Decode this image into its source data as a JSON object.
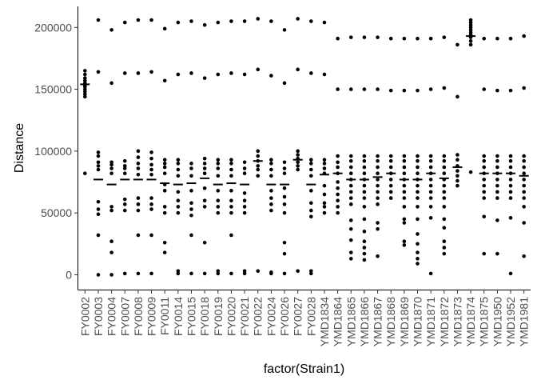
{
  "chart_data": {
    "type": "scatter",
    "xlabel": "factor(Strain1)",
    "ylabel": "Distance",
    "categories": [
      "FY0002",
      "FY0003",
      "FY0004",
      "FY0007",
      "FY0008",
      "FY0009",
      "FY0011",
      "FY0014",
      "FY0015",
      "FY0018",
      "FY0019",
      "FY0020",
      "FY0021",
      "FY0022",
      "FY0024",
      "FY0026",
      "FY0027",
      "FY0028",
      "YMD1834",
      "YMD1864",
      "YMD1865",
      "YMD1866",
      "YMD1867",
      "YMD1868",
      "YMD1869",
      "YMD1870",
      "YMD1871",
      "YMD1872",
      "YMD1873",
      "YMD1874",
      "YMD1875",
      "YMD1950",
      "YMD1952",
      "YMD1981"
    ],
    "ylim": [
      -12000,
      217000
    ],
    "yticks": [
      0,
      50000,
      100000,
      150000,
      200000
    ],
    "ytick_labels": [
      "0",
      "50000",
      "100000",
      "150000",
      "200000"
    ],
    "grid": false,
    "legend": "none",
    "point_color": "#000000",
    "points": [
      [
        82000,
        146000,
        148000,
        150000,
        152000,
        155000,
        157000,
        159000,
        162000,
        165000,
        144000,
        153000
      ],
      [
        0,
        32000,
        49000,
        53000,
        59000,
        85000,
        88000,
        91000,
        96000,
        99000,
        164000,
        206000
      ],
      [
        0,
        18000,
        27000,
        52000,
        55000,
        82000,
        86000,
        89000,
        91000,
        155000,
        198000
      ],
      [
        1000,
        52000,
        57000,
        61000,
        82000,
        86000,
        88000,
        92000,
        163000,
        204000
      ],
      [
        1000,
        32000,
        52000,
        57000,
        62000,
        81000,
        86000,
        90000,
        95000,
        100000,
        163000,
        206000
      ],
      [
        1000,
        32000,
        53000,
        57000,
        62000,
        81000,
        85000,
        89000,
        94000,
        99000,
        164000,
        206000
      ],
      [
        18000,
        26000,
        50000,
        55000,
        68000,
        73000,
        82000,
        87000,
        90000,
        93000,
        157000,
        199000
      ],
      [
        1000,
        3000,
        50000,
        55000,
        60000,
        67000,
        80000,
        85000,
        90000,
        93000,
        162000,
        204000
      ],
      [
        1000,
        32000,
        48000,
        53000,
        58000,
        68000,
        80000,
        86000,
        90000,
        163000,
        205000
      ],
      [
        1000,
        26000,
        55000,
        60000,
        70000,
        82000,
        86000,
        90000,
        94000,
        159000,
        202000
      ],
      [
        1000,
        3000,
        50000,
        55000,
        60000,
        68000,
        80000,
        86000,
        90000,
        93000,
        162000,
        204000
      ],
      [
        1000,
        32000,
        50000,
        55000,
        60000,
        68000,
        80000,
        85000,
        90000,
        93000,
        163000,
        205000
      ],
      [
        1000,
        3000,
        50000,
        55000,
        60000,
        66000,
        82000,
        86000,
        91000,
        162000,
        205000
      ],
      [
        3000,
        80000,
        85000,
        88000,
        92000,
        96000,
        100000,
        166000,
        207000
      ],
      [
        1000,
        2000,
        52000,
        57000,
        62000,
        68000,
        80000,
        85000,
        90000,
        93000,
        161000,
        205000
      ],
      [
        1000,
        17000,
        26000,
        50000,
        57000,
        63000,
        70000,
        82000,
        86000,
        91000,
        155000,
        198000
      ],
      [
        3000,
        85000,
        88000,
        91000,
        94000,
        97000,
        100000,
        166000,
        207000
      ],
      [
        1000,
        3000,
        47000,
        52000,
        58000,
        68000,
        80000,
        85000,
        90000,
        93000,
        163000,
        205000
      ],
      [
        50000,
        55000,
        58000,
        65000,
        72000,
        82000,
        86000,
        90000,
        93000,
        162000,
        204000
      ],
      [
        50000,
        55000,
        60000,
        65000,
        70000,
        75000,
        82000,
        87000,
        91000,
        96000,
        150000,
        191000
      ],
      [
        13000,
        18000,
        28000,
        37000,
        44000,
        57000,
        62000,
        67000,
        72000,
        77000,
        82000,
        87000,
        92000,
        96000,
        150000,
        192000
      ],
      [
        12000,
        17000,
        22000,
        27000,
        35000,
        45000,
        55000,
        62000,
        67000,
        72000,
        77000,
        82000,
        87000,
        92000,
        96000,
        150000,
        192000
      ],
      [
        15000,
        37000,
        42000,
        57000,
        62000,
        67000,
        72000,
        77000,
        82000,
        87000,
        92000,
        96000,
        150000,
        192000
      ],
      [
        62000,
        67000,
        72000,
        77000,
        82000,
        87000,
        92000,
        96000,
        149000,
        191000
      ],
      [
        24000,
        27000,
        42000,
        45000,
        55000,
        62000,
        67000,
        72000,
        77000,
        82000,
        87000,
        92000,
        96000,
        149000,
        191000
      ],
      [
        9000,
        13000,
        18000,
        25000,
        33000,
        45000,
        55000,
        62000,
        67000,
        72000,
        77000,
        82000,
        87000,
        92000,
        96000,
        149000,
        191000
      ],
      [
        1000,
        46000,
        55000,
        62000,
        67000,
        72000,
        77000,
        82000,
        87000,
        92000,
        96000,
        150000,
        191000
      ],
      [
        17000,
        22000,
        27000,
        38000,
        45000,
        55000,
        62000,
        67000,
        72000,
        77000,
        82000,
        87000,
        92000,
        96000,
        151000,
        192000
      ],
      [
        72000,
        76000,
        80000,
        84000,
        88000,
        93000,
        97000,
        144000,
        186000
      ],
      [
        83000,
        186000,
        189000,
        192000,
        194000,
        196000,
        198000,
        200000,
        202000,
        204000,
        206000
      ],
      [
        17000,
        47000,
        62000,
        67000,
        72000,
        77000,
        82000,
        87000,
        92000,
        96000,
        150000,
        191000
      ],
      [
        17000,
        44000,
        62000,
        67000,
        72000,
        77000,
        82000,
        87000,
        92000,
        96000,
        149000,
        191000
      ],
      [
        1000,
        46000,
        62000,
        67000,
        72000,
        77000,
        82000,
        87000,
        92000,
        96000,
        149000,
        191000
      ],
      [
        15000,
        42000,
        55000,
        62000,
        67000,
        72000,
        77000,
        82000,
        87000,
        92000,
        96000,
        151000,
        193000
      ]
    ],
    "mean_values": [
      154000,
      77000,
      73000,
      77000,
      77000,
      77000,
      74000,
      73000,
      74000,
      78000,
      73000,
      74000,
      73000,
      92000,
      73000,
      73000,
      93000,
      73000,
      81000,
      82000,
      77000,
      77000,
      79000,
      82000,
      77000,
      77000,
      82000,
      78000,
      87000,
      193000,
      82000,
      82000,
      82000,
      80000
    ]
  }
}
